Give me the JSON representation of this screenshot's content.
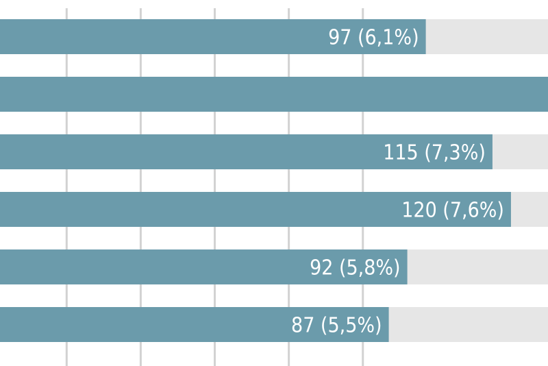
{
  "chart_data": {
    "type": "bar",
    "orientation": "horizontal",
    "grid": true,
    "track_color": "#e6e6e6",
    "bar_color": "#6b9bab",
    "grid_color": "#d2d2d2",
    "label_color": "#ffffff",
    "values": [
      97,
      131,
      115,
      120,
      92,
      87
    ],
    "value_labels": [
      "97 (6,1%)",
      "",
      "115 (7,3%)",
      "120 (7,6%)",
      "92 (5,8%)",
      "87 (5,5%)"
    ],
    "xlim": [
      -18,
      130
    ]
  }
}
